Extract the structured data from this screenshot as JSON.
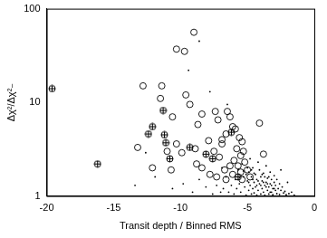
{
  "chart_data": {
    "type": "scatter",
    "x_label": "Transit depth / Binned RMS",
    "y_label": "Δχ²/Δχ²₋",
    "xlim": [
      -20,
      0
    ],
    "ylim": [
      1,
      100
    ],
    "xticks": [
      -20,
      -15,
      -10,
      -5,
      0
    ],
    "yticks": [
      1,
      10,
      100
    ],
    "log": "y",
    "grid": false,
    "series": [
      {
        "marker": "dot",
        "color": "#000000",
        "x": [
          -6.4,
          -6.2,
          -6.0,
          -5.9,
          -5.8,
          -5.7,
          -5.6,
          -5.5,
          -5.4,
          -5.3,
          -5.2,
          -5.1,
          -5.0,
          -4.9,
          -4.9,
          -4.8,
          -4.8,
          -4.7,
          -4.7,
          -4.6,
          -4.6,
          -4.5,
          -4.5,
          -4.4,
          -4.4,
          -4.3,
          -4.3,
          -4.2,
          -4.2,
          -4.1,
          -4.1,
          -4.0,
          -4.0,
          -3.9,
          -3.9,
          -3.8,
          -3.8,
          -3.7,
          -3.7,
          -3.6,
          -3.6,
          -3.5,
          -3.5,
          -3.4,
          -3.4,
          -3.3,
          -3.3,
          -3.2,
          -3.2,
          -3.1,
          -3.1,
          -3.0,
          -3.0,
          -2.9,
          -2.9,
          -2.8,
          -2.8,
          -2.7,
          -2.6,
          -2.6,
          -2.5,
          -2.4,
          -2.3,
          -2.2,
          -2.1,
          -1.9,
          -1.7,
          -5.6,
          -5.3,
          -5.1,
          -5.0,
          -4.9,
          -4.7,
          -4.6,
          -4.5,
          -4.3,
          -4.2,
          -4.0,
          -3.9,
          -3.8,
          -3.7,
          -3.6,
          -3.5,
          -3.4,
          -3.3,
          -3.2,
          -3.0,
          -6.8,
          -7.0,
          -7.3,
          -6.6,
          -6.9,
          -7.6,
          -8.1,
          -8.6,
          -9.1,
          -9.8,
          -10.6,
          -11.9,
          -12.6,
          -13.4,
          -9.4,
          -8.6,
          -7.8,
          -6.5,
          -2.5,
          -2.0,
          -1.5
        ],
        "values": [
          1.1,
          1.3,
          1.05,
          1.5,
          1.2,
          1.9,
          1.35,
          1.1,
          2.2,
          1.6,
          1.25,
          1.02,
          1.45,
          1.8,
          1.15,
          2.5,
          1.3,
          1.05,
          1.6,
          1.2,
          2.0,
          1.4,
          1.08,
          1.7,
          1.25,
          1.02,
          1.5,
          2.3,
          1.15,
          1.35,
          1.9,
          1.05,
          1.6,
          1.2,
          1.45,
          1.1,
          1.75,
          1.3,
          1.02,
          2.1,
          1.4,
          1.15,
          1.55,
          1.05,
          1.25,
          1.8,
          1.35,
          1.1,
          1.5,
          1.2,
          1.03,
          1.4,
          1.65,
          1.15,
          1.3,
          1.06,
          1.5,
          1.2,
          1.35,
          1.04,
          1.15,
          1.25,
          1.08,
          1.12,
          1.03,
          1.06,
          1.1,
          1.6,
          1.85,
          1.7,
          2.0,
          1.4,
          1.9,
          1.5,
          1.75,
          1.3,
          1.45,
          1.3,
          1.7,
          1.4,
          1.6,
          1.25,
          1.35,
          1.6,
          1.1,
          1.3,
          1.2,
          1.2,
          1.1,
          1.3,
          1.6,
          2.0,
          1.05,
          1.25,
          1.5,
          1.1,
          1.35,
          1.2,
          1.6,
          2.9,
          1.3,
          22,
          45,
          13,
          9.5,
          1.9,
          1.4,
          1.02
        ]
      },
      {
        "marker": "circle",
        "color": "#000000",
        "x": [
          -9.0,
          -10.3,
          -9.7,
          -12.8,
          -11.4,
          -9.6,
          -9.3,
          -11.5,
          -10.6,
          -8.4,
          -7.4,
          -7.2,
          -6.5,
          -6.3,
          -8.7,
          -10.3,
          -9.9,
          -13.2,
          -12.1,
          -10.7,
          -8.8,
          -8.4,
          -7.8,
          -7.5,
          -7.1,
          -6.9,
          -6.6,
          -6.1,
          -5.9,
          -5.6,
          -5.4,
          -5.8,
          -5.3,
          -5.5,
          -6.0,
          -6.3,
          -5.2,
          -5.7,
          -6.7,
          -7.3,
          -5.5,
          -6.1,
          -5.0,
          -5.4,
          -6.6,
          -4.8,
          -8.9,
          -11.0,
          -7.9,
          -6.9,
          -4.1,
          -3.8
        ],
        "values": [
          56,
          37,
          35,
          15,
          15,
          12,
          9.5,
          11,
          7,
          7.5,
          8,
          6.5,
          8,
          7,
          5.8,
          3.6,
          2.9,
          3.3,
          2.0,
          1.9,
          2.2,
          2.0,
          1.7,
          3.0,
          2.6,
          3.6,
          4.6,
          5.5,
          5.2,
          4.2,
          3.8,
          3.2,
          3.0,
          2.7,
          2.4,
          2.1,
          2.3,
          2.1,
          1.9,
          1.6,
          1.8,
          1.7,
          1.9,
          1.5,
          1.5,
          1.6,
          3.2,
          3.0,
          3.9,
          4.0,
          6.0,
          2.8
        ]
      },
      {
        "marker": "circle_plus",
        "color": "#000000",
        "x": [
          -19.6,
          -16.2,
          -12.4,
          -12.1,
          -11.3,
          -11.2,
          -11.1,
          -10.8,
          -9.3,
          -8.1,
          -7.6,
          -6.2,
          -5.7
        ],
        "values": [
          14,
          2.2,
          4.6,
          5.5,
          8.2,
          4.5,
          3.7,
          2.5,
          3.3,
          2.8,
          2.5,
          4.8,
          1.6
        ]
      }
    ]
  }
}
